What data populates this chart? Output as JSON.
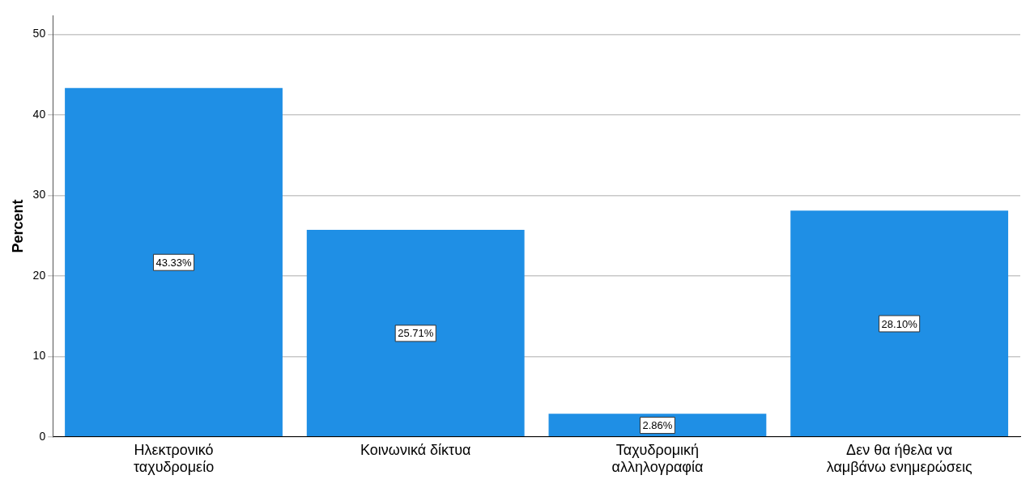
{
  "chart_data": {
    "type": "bar",
    "ylabel": "Percent",
    "categories": [
      "Ηλεκτρονικό ταχυδρομείο",
      "Κοινωνικά δίκτυα",
      "Ταχυδρομική αλληλογραφία",
      "Δεν θα ήθελα να λαμβάνω ενημερώσεις"
    ],
    "values": [
      43.33,
      25.71,
      2.86,
      28.1
    ],
    "value_labels": [
      "43.33%",
      "25.71%",
      "2.86%",
      "28.10%"
    ],
    "color": "#1f8fe5",
    "ylim": [
      0,
      52.3
    ],
    "yticks": [
      0,
      10,
      20,
      30,
      40,
      50
    ],
    "grid": "y",
    "legend": false
  }
}
